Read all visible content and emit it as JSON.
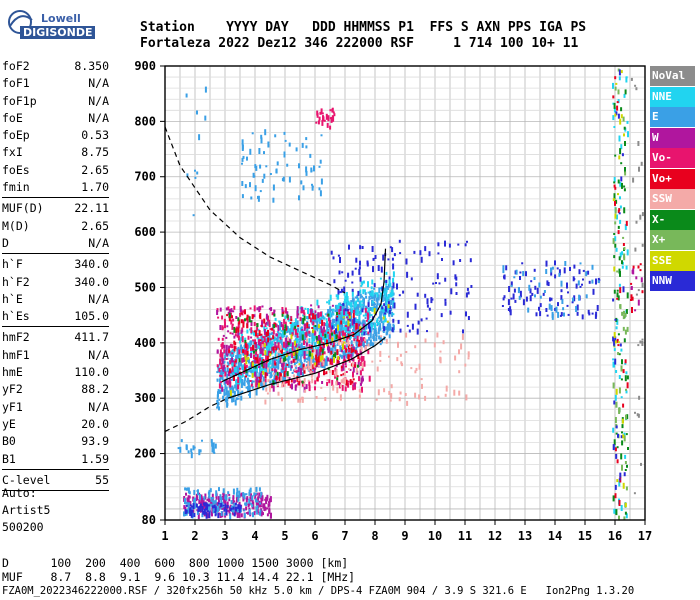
{
  "logo": {
    "line1": "Lowell",
    "line2": "DIGISONDE"
  },
  "header": {
    "row1": "Station    YYYY DAY   DDD HHMMSS P1  FFS S AXN PPS IGA PS",
    "row2": "Fortaleza 2022 Dez12 346 222000 RSF     1 714 100 10+ 11"
  },
  "params": {
    "group1": [
      {
        "k": "foF2",
        "v": "8.350"
      },
      {
        "k": "foF1",
        "v": "N/A"
      },
      {
        "k": "foF1p",
        "v": "N/A"
      },
      {
        "k": "foE",
        "v": "N/A"
      },
      {
        "k": "foEp",
        "v": "0.53"
      },
      {
        "k": "fxI",
        "v": "8.75"
      },
      {
        "k": "foEs",
        "v": "2.65"
      },
      {
        "k": "fmin",
        "v": "1.70"
      }
    ],
    "group2": [
      {
        "k": "MUF(D)",
        "v": "22.11"
      },
      {
        "k": "M(D)",
        "v": "2.65"
      },
      {
        "k": "D",
        "v": "N/A"
      }
    ],
    "group3": [
      {
        "k": "h`F",
        "v": "340.0"
      },
      {
        "k": "h`F2",
        "v": "340.0"
      },
      {
        "k": "h`E",
        "v": "N/A"
      },
      {
        "k": "h`Es",
        "v": "105.0"
      }
    ],
    "group4": [
      {
        "k": "hmF2",
        "v": "411.7"
      },
      {
        "k": "hmF1",
        "v": "N/A"
      },
      {
        "k": "hmE",
        "v": "110.0"
      },
      {
        "k": "yF2",
        "v": "88.2"
      },
      {
        "k": "yF1",
        "v": "N/A"
      },
      {
        "k": "yE",
        "v": "20.0"
      },
      {
        "k": "B0",
        "v": "93.9"
      },
      {
        "k": "B1",
        "v": "1.59"
      }
    ],
    "group5": [
      {
        "k": "C-level",
        "v": "55"
      }
    ]
  },
  "auto": {
    "line1": "Auto:",
    "line2": "Artist5",
    "line3": "500200"
  },
  "legend": [
    {
      "label": "NoVal",
      "color": "#8c8c8c"
    },
    {
      "label": "NNE",
      "color": "#21d4f0"
    },
    {
      "label": "E",
      "color": "#3aa0e6"
    },
    {
      "label": "W",
      "color": "#b0169e"
    },
    {
      "label": "Vo-",
      "color": "#e8146e"
    },
    {
      "label": "Vo+",
      "color": "#e8001e"
    },
    {
      "label": "SSW",
      "color": "#f4aaa8"
    },
    {
      "label": "X-",
      "color": "#0a8a1a"
    },
    {
      "label": "X+",
      "color": "#78b85a"
    },
    {
      "label": "SSE",
      "color": "#d0d800"
    },
    {
      "label": "NNW",
      "color": "#2a2ad6"
    }
  ],
  "chart_data": {
    "type": "scatter",
    "title": "",
    "xlabel": "",
    "ylabel": "",
    "xlim": [
      1,
      17
    ],
    "ylim": [
      80,
      900
    ],
    "x_ticks": [
      "1",
      "2",
      "3",
      "4",
      "5",
      "6",
      "7",
      "8",
      "9",
      "10",
      "11",
      "12",
      "13",
      "14",
      "15",
      "16",
      "17"
    ],
    "y_ticks": [
      "80",
      "200",
      "300",
      "400",
      "500",
      "600",
      "700",
      "800",
      "900"
    ],
    "grid": true,
    "profile_solid": [
      [
        2.9,
        330
      ],
      [
        3.5,
        345
      ],
      [
        4.5,
        370
      ],
      [
        5.5,
        388
      ],
      [
        6.5,
        400
      ],
      [
        7.3,
        415
      ],
      [
        7.9,
        440
      ],
      [
        8.2,
        470
      ],
      [
        8.3,
        510
      ],
      [
        8.35,
        570
      ]
    ],
    "profile_dashed": [
      [
        1.0,
        790
      ],
      [
        1.5,
        720
      ],
      [
        2.5,
        640
      ],
      [
        3.5,
        590
      ],
      [
        4.5,
        555
      ],
      [
        5.5,
        530
      ],
      [
        6.5,
        505
      ],
      [
        7.0,
        490
      ]
    ],
    "trace_lower_solid": [
      [
        3.1,
        300
      ],
      [
        4.5,
        325
      ],
      [
        6.0,
        345
      ],
      [
        7.2,
        370
      ],
      [
        8.0,
        395
      ],
      [
        8.35,
        410
      ]
    ],
    "trace_lower_dashed": [
      [
        1.0,
        240
      ],
      [
        1.7,
        258
      ],
      [
        2.5,
        285
      ],
      [
        3.1,
        300
      ]
    ],
    "clusters": [
      {
        "series": "E",
        "x": [
          2.7,
          8.6
        ],
        "y": [
          300,
          520
        ],
        "n": 1100
      },
      {
        "series": "NNE",
        "x": [
          3.2,
          8.6
        ],
        "y": [
          340,
          540
        ],
        "n": 350
      },
      {
        "series": "Vo-",
        "x": [
          2.7,
          7.8
        ],
        "y": [
          320,
          470
        ],
        "n": 320
      },
      {
        "series": "W",
        "x": [
          2.7,
          7.6
        ],
        "y": [
          320,
          470
        ],
        "n": 200
      },
      {
        "series": "Vo+",
        "x": [
          3.0,
          7.5
        ],
        "y": [
          330,
          460
        ],
        "n": 160
      },
      {
        "series": "SSW",
        "x": [
          4.2,
          11.2
        ],
        "y": [
          295,
          420
        ],
        "n": 150
      },
      {
        "series": "NNW",
        "x": [
          6.5,
          11.2
        ],
        "y": [
          420,
          590
        ],
        "n": 140
      },
      {
        "series": "X-",
        "x": [
          3.0,
          7.5
        ],
        "y": [
          330,
          460
        ],
        "n": 50
      },
      {
        "series": "SSE",
        "x": [
          3.0,
          8.5
        ],
        "y": [
          320,
          480
        ],
        "n": 40
      },
      {
        "series": "W",
        "x": [
          1.6,
          4.5
        ],
        "y": [
          92,
          130
        ],
        "n": 200
      },
      {
        "series": "E",
        "x": [
          1.6,
          4.2
        ],
        "y": [
          92,
          140
        ],
        "n": 120
      },
      {
        "series": "NNW",
        "x": [
          1.6,
          3.5
        ],
        "y": [
          92,
          112
        ],
        "n": 60
      },
      {
        "series": "E",
        "x": [
          3.5,
          6.2
        ],
        "y": [
          660,
          790
        ],
        "n": 70
      },
      {
        "series": "Vo-",
        "x": [
          6.0,
          6.7
        ],
        "y": [
          790,
          825
        ],
        "n": 25
      },
      {
        "series": "NNW",
        "x": [
          12.2,
          15.5
        ],
        "y": [
          450,
          550
        ],
        "n": 90
      },
      {
        "series": "E",
        "x": [
          12.2,
          15.5
        ],
        "y": [
          450,
          550
        ],
        "n": 40
      },
      {
        "series": "E",
        "x": [
          1.4,
          2.7
        ],
        "y": [
          200,
          230
        ],
        "n": 20
      },
      {
        "series": "NNE",
        "x": [
          15.9,
          16.4
        ],
        "y": [
          80,
          900
        ],
        "n": 60
      },
      {
        "series": "X-",
        "x": [
          15.9,
          16.4
        ],
        "y": [
          80,
          900
        ],
        "n": 60
      },
      {
        "series": "X+",
        "x": [
          15.9,
          16.4
        ],
        "y": [
          80,
          900
        ],
        "n": 40
      },
      {
        "series": "Vo+",
        "x": [
          15.9,
          16.4
        ],
        "y": [
          80,
          900
        ],
        "n": 25
      },
      {
        "series": "NNW",
        "x": [
          15.9,
          16.4
        ],
        "y": [
          80,
          900
        ],
        "n": 25
      },
      {
        "series": "SSE",
        "x": [
          15.9,
          16.4
        ],
        "y": [
          80,
          900
        ],
        "n": 20
      },
      {
        "series": "NoVal",
        "x": [
          16.5,
          16.9
        ],
        "y": [
          80,
          900
        ],
        "n": 25
      },
      {
        "series": "Vo+",
        "x": [
          16.5,
          16.9
        ],
        "y": [
          460,
          550
        ],
        "n": 10
      },
      {
        "series": "W",
        "x": [
          16.5,
          16.9
        ],
        "y": [
          460,
          550
        ],
        "n": 8
      },
      {
        "series": "E",
        "x": [
          1.6,
          2.4
        ],
        "y": [
          620,
          900
        ],
        "n": 10
      }
    ]
  },
  "muf_table": {
    "row_d": "D      100  200  400  600  800 1000 1500 3000 [km]",
    "row_muf": "MUF    8.7  8.8  9.1  9.6 10.3 11.4 14.4 22.1 [MHz]"
  },
  "footer": "FZA0M_2022346222000.RSF / 320fx256h 50 kHz 5.0 km / DPS-4 FZA0M 904 / 3.9 S 321.6 E   Ion2Png 1.3.20"
}
